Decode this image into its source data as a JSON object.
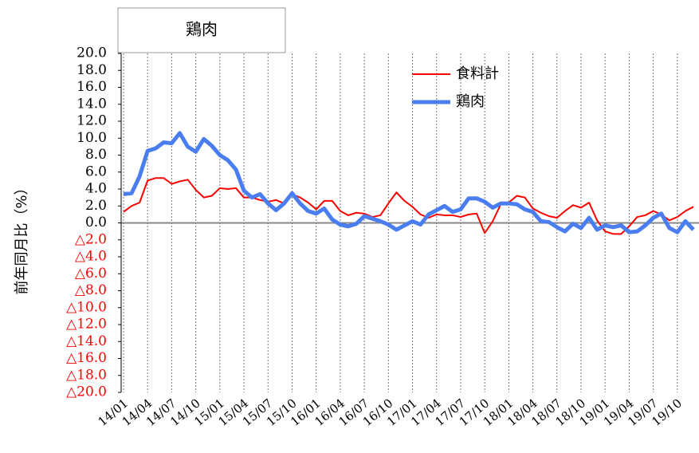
{
  "chart_data": {
    "type": "line",
    "title": "鶏肉",
    "y_label": "前年同月比（%）",
    "categories": [
      "14/01",
      null,
      null,
      "14/04",
      null,
      null,
      "14/07",
      null,
      null,
      "14/10",
      null,
      null,
      "15/01",
      null,
      null,
      "15/04",
      null,
      null,
      "15/07",
      null,
      null,
      "15/10",
      null,
      null,
      "16/01",
      null,
      null,
      "16/04",
      null,
      null,
      "16/07",
      null,
      null,
      "16/10",
      null,
      null,
      "17/01",
      null,
      null,
      "17/04",
      null,
      null,
      "17/07",
      null,
      null,
      "17/10",
      null,
      null,
      "18/01",
      null,
      null,
      "18/04",
      null,
      null,
      "18/07",
      null,
      null,
      "18/10",
      null,
      null,
      "19/01",
      null,
      null,
      "19/04",
      null,
      null,
      "19/07",
      null,
      null,
      "19/10",
      null,
      null
    ],
    "series": [
      {
        "name": "食料計",
        "color": "#ff0000",
        "width": 2,
        "values": [
          1.3,
          2.0,
          2.4,
          5.0,
          5.3,
          5.3,
          4.6,
          4.9,
          5.1,
          3.9,
          3.0,
          3.2,
          4.1,
          4.0,
          4.1,
          3.0,
          3.0,
          2.7,
          2.5,
          2.7,
          2.3,
          3.4,
          3.0,
          2.4,
          1.6,
          2.6,
          2.6,
          1.4,
          0.9,
          1.2,
          1.1,
          0.7,
          0.9,
          2.3,
          3.6,
          2.6,
          1.9,
          1.0,
          0.6,
          1.0,
          0.9,
          0.9,
          0.7,
          1.0,
          1.1,
          -1.2,
          0.2,
          2.2,
          2.4,
          3.2,
          3.0,
          1.7,
          1.2,
          0.8,
          0.6,
          1.4,
          2.1,
          1.8,
          2.4,
          0.3,
          -1.0,
          -1.3,
          -1.3,
          -0.4,
          0.7,
          0.9,
          1.4,
          1.0,
          0.3,
          0.7,
          1.4,
          1.9
        ]
      },
      {
        "name": "鶏肉",
        "color": "#4a7ef0",
        "width": 5,
        "values": [
          3.4,
          3.5,
          5.5,
          8.5,
          8.8,
          9.5,
          9.4,
          10.6,
          9.0,
          8.4,
          9.9,
          9.1,
          8.0,
          7.4,
          6.3,
          3.8,
          3.0,
          3.4,
          2.3,
          1.5,
          2.3,
          3.5,
          2.3,
          1.4,
          1.1,
          1.7,
          0.4,
          -0.2,
          -0.4,
          -0.1,
          0.8,
          0.5,
          0.2,
          -0.2,
          -0.8,
          -0.3,
          0.2,
          -0.2,
          1.0,
          1.5,
          2.0,
          1.3,
          1.6,
          2.9,
          2.9,
          2.5,
          1.8,
          2.3,
          2.3,
          2.2,
          1.6,
          1.3,
          0.2,
          0.1,
          -0.5,
          -1.0,
          -0.1,
          -0.6,
          0.6,
          -0.8,
          -0.3,
          -0.5,
          -0.3,
          -1.1,
          -1.0,
          -0.3,
          0.6,
          1.1,
          -0.6,
          -1.1,
          0.2,
          -0.8
        ]
      }
    ],
    "ylim": [
      -20,
      20
    ],
    "yticks": [
      {
        "value": 20,
        "label": "20.0"
      },
      {
        "value": 18,
        "label": "18.0"
      },
      {
        "value": 16,
        "label": "16.0"
      },
      {
        "value": 14,
        "label": "14.0"
      },
      {
        "value": 12,
        "label": "12.0"
      },
      {
        "value": 10,
        "label": "10.0"
      },
      {
        "value": 8,
        "label": "8.0"
      },
      {
        "value": 6,
        "label": "6.0"
      },
      {
        "value": 4,
        "label": "4.0"
      },
      {
        "value": 2,
        "label": "2.0"
      },
      {
        "value": 0,
        "label": "0.0"
      },
      {
        "value": -2,
        "label": "△2.0"
      },
      {
        "value": -4,
        "label": "△4.0"
      },
      {
        "value": -6,
        "label": "△6.0"
      },
      {
        "value": -8,
        "label": "△8.0"
      },
      {
        "value": -10,
        "label": "△10.0"
      },
      {
        "value": -12,
        "label": "△12.0"
      },
      {
        "value": -14,
        "label": "△14.0"
      },
      {
        "value": -16,
        "label": "△16.0"
      },
      {
        "value": -18,
        "label": "△18.0"
      },
      {
        "value": -20,
        "label": "△20.0"
      }
    ],
    "negative_tick_color": "#ff0000",
    "x_grid": true,
    "legend": "top-right"
  }
}
